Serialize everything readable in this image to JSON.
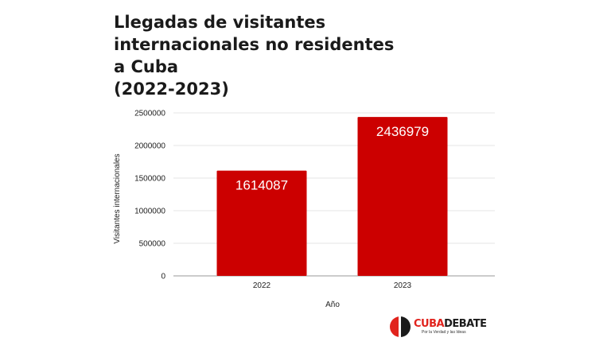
{
  "chart_data": {
    "type": "bar",
    "title": "Llegadas de visitantes internacionales no residentes a Cuba (2022-2023)",
    "title_lines": [
      "Llegadas de visitantes",
      "internacionales no residentes a Cuba",
      "(2022-2023)"
    ],
    "categories": [
      "2022",
      "2023"
    ],
    "values": [
      1614087,
      2436979
    ],
    "data_labels": [
      "1614087",
      "2436979"
    ],
    "xlabel": "Año",
    "ylabel": "Visitantes internacionales",
    "ylim": [
      0,
      2500000
    ],
    "yticks": [
      0,
      500000,
      1000000,
      1500000,
      2000000,
      2500000
    ],
    "ytick_labels": [
      "0",
      "500000",
      "1000000",
      "1500000",
      "2000000",
      "2500000"
    ],
    "grid": true,
    "bar_color": "#cc0000"
  },
  "branding": {
    "logo_part1": "CUBA",
    "logo_part2": "DEBATE",
    "tagline": "Por la Verdad y las Ideas"
  }
}
